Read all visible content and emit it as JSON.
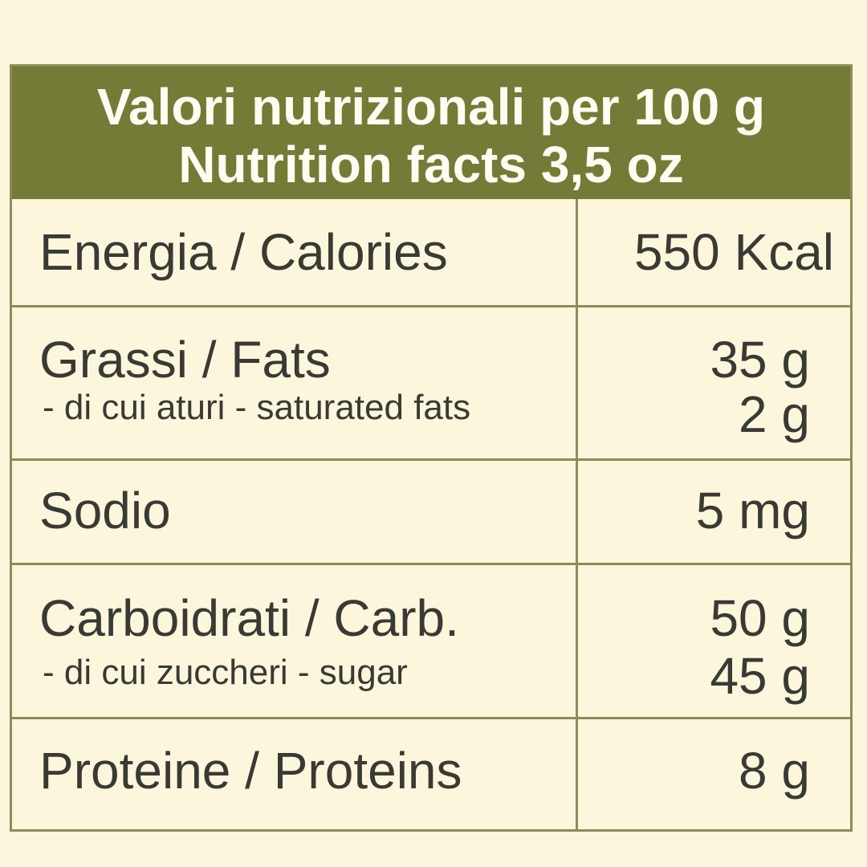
{
  "header": {
    "line1": "Valori nutrizionali per 100 g",
    "line2": "Nutrition facts 3,5 oz"
  },
  "rows": [
    {
      "label": "Energia / Calories",
      "value": "550 Kcal"
    },
    {
      "label": "Grassi / Fats",
      "sub_label": "- di cui aturi - saturated fats",
      "value": "35 g",
      "sub_value": "2 g"
    },
    {
      "label": "Sodio",
      "value": "5 mg"
    },
    {
      "label": "Carboidrati / Carb.",
      "sub_label": "- di cui zuccheri - sugar",
      "value": "50 g",
      "sub_value": "45 g"
    },
    {
      "label": "Proteine / Proteins",
      "value": "8 g"
    }
  ],
  "colors": {
    "header_bg": "#747b36",
    "page_bg": "#fbf6dc",
    "border": "#8c8c5a",
    "text": "#3a3a34"
  }
}
